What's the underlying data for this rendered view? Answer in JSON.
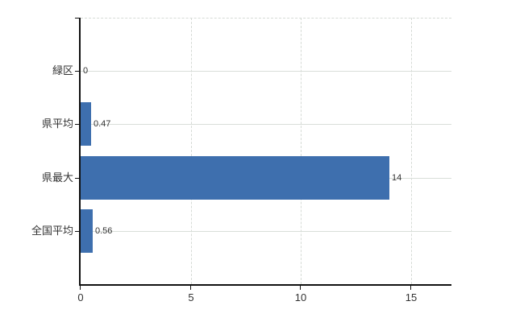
{
  "chart_data": {
    "type": "bar",
    "orientation": "horizontal",
    "title": "",
    "xlabel": "",
    "ylabel": "",
    "categories": [
      "緑区",
      "県平均",
      "県最大",
      "全国平均"
    ],
    "values": [
      0,
      0.47,
      14,
      0.56
    ],
    "value_labels": [
      "0",
      "0.47",
      "14",
      "0.56"
    ],
    "xticks": [
      0,
      5,
      10,
      15
    ],
    "xtick_labels": [
      "0",
      "5",
      "10",
      "15"
    ],
    "xlim": [
      0,
      16.83
    ],
    "grid": true,
    "legend": false,
    "colors": {
      "bar": "#3e6fae",
      "grid": "#d9ded9",
      "axis": "#111111",
      "text": "#333333",
      "background": "#ffffff"
    }
  }
}
